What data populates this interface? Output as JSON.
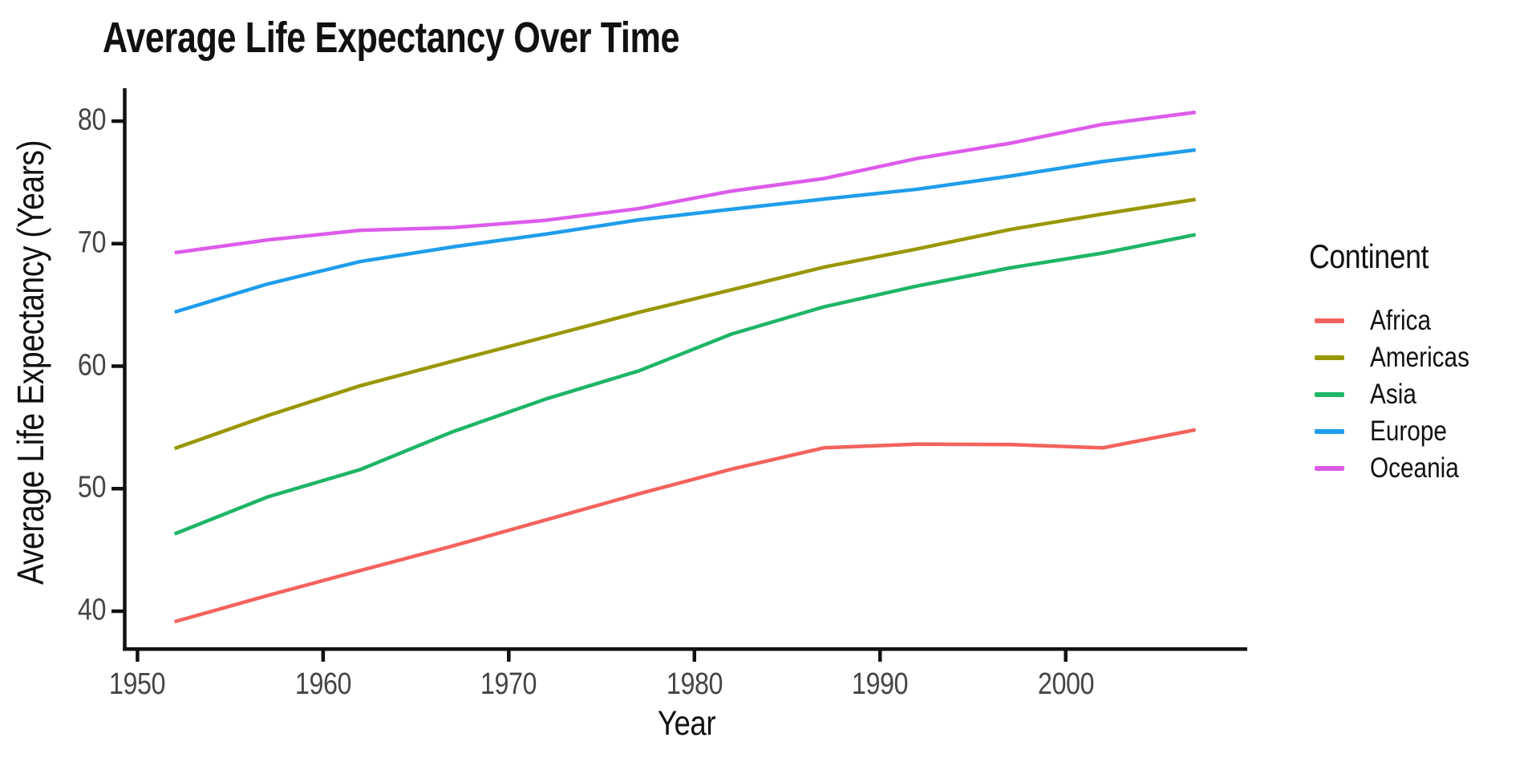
{
  "title": "Average Life Expectancy Over Time",
  "axes": {
    "x_label": "Year",
    "y_label": "Average Life Expectancy (Years)",
    "x_ticks": [
      "1950",
      "1960",
      "1970",
      "1980",
      "1990",
      "2000"
    ],
    "y_ticks": [
      "40",
      "50",
      "60",
      "70",
      "80"
    ]
  },
  "legend": {
    "title": "Continent",
    "items": [
      {
        "label": "Africa",
        "color": "#F4625D"
      },
      {
        "label": "Americas",
        "color": "#999700"
      },
      {
        "label": "Asia",
        "color": "#1EB566"
      },
      {
        "label": "Europe",
        "color": "#1F9DEC"
      },
      {
        "label": "Oceania",
        "color": "#DD5BEB"
      }
    ]
  },
  "colors": {
    "axis_line": "#111111",
    "tick_text": "#454545",
    "background": "#ffffff"
  },
  "chart_data": {
    "type": "line",
    "title": "Average Life Expectancy Over Time",
    "xlabel": "Year",
    "ylabel": "Average Life Expectancy (Years)",
    "x": [
      1952,
      1957,
      1962,
      1967,
      1972,
      1977,
      1982,
      1987,
      1992,
      1997,
      2002,
      2007
    ],
    "series": [
      {
        "name": "Africa",
        "color": "#F4625D",
        "values": [
          39.14,
          41.27,
          43.32,
          45.33,
          47.45,
          49.58,
          51.59,
          53.34,
          53.63,
          53.6,
          53.33,
          54.81
        ]
      },
      {
        "name": "Americas",
        "color": "#999700",
        "values": [
          53.28,
          55.96,
          58.4,
          60.41,
          62.39,
          64.39,
          66.23,
          68.09,
          69.57,
          71.15,
          72.42,
          73.61
        ]
      },
      {
        "name": "Asia",
        "color": "#1EB566",
        "values": [
          46.31,
          49.32,
          51.56,
          54.66,
          57.32,
          59.61,
          62.62,
          64.85,
          66.54,
          68.02,
          69.23,
          70.73
        ]
      },
      {
        "name": "Europe",
        "color": "#1F9DEC",
        "values": [
          64.41,
          66.7,
          68.54,
          69.74,
          70.78,
          71.94,
          72.81,
          73.64,
          74.44,
          75.51,
          76.7,
          77.65
        ]
      },
      {
        "name": "Oceania",
        "color": "#DD5BEB",
        "values": [
          69.26,
          70.3,
          71.09,
          71.31,
          71.91,
          72.86,
          74.29,
          75.32,
          76.95,
          78.19,
          79.74,
          80.72
        ]
      }
    ],
    "xlim": [
      1949.2,
      2009.8
    ],
    "ylim": [
      37.0,
      82.8
    ],
    "x_tick_values": [
      1950,
      1960,
      1970,
      1980,
      1990,
      2000
    ],
    "y_tick_values": [
      40,
      50,
      60,
      70,
      80
    ],
    "grid": false,
    "legend_title": "Continent",
    "legend_position": "right"
  }
}
